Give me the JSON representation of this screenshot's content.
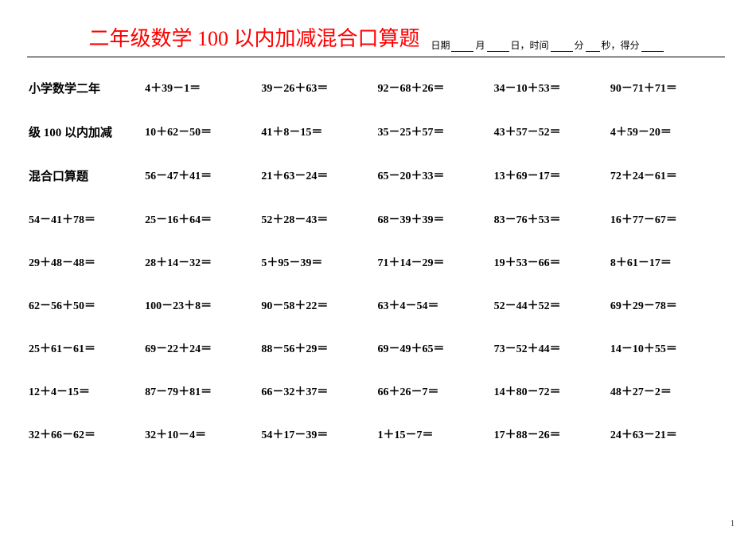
{
  "title": "二年级数学 100 以内加减混合口算题",
  "meta": {
    "l1": "日期",
    "l2": "月",
    "l3": "日，时间",
    "l4": "分",
    "l5": "秒，得分"
  },
  "label_parts": [
    "小学数学二年",
    "级 100 以内加减",
    "混合口算题"
  ],
  "colors": {
    "title": "#ff0000",
    "text": "#000000",
    "bg": "#ffffff"
  },
  "font": {
    "title_size": 26,
    "cell_size": 14,
    "meta_size": 12
  },
  "page_number": "1",
  "rows": [
    [
      "__L0__",
      "4＋39－1＝",
      "39－26＋63＝",
      "92－68＋26＝",
      "34－10＋53＝",
      "90－71＋71＝"
    ],
    [
      "__L1__",
      "10＋62－50＝",
      "41＋8－15＝",
      "35－25＋57＝",
      "43＋57－52＝",
      "4＋59－20＝"
    ],
    [
      "__L2__",
      "56－47＋41＝",
      "21＋63－24＝",
      "65－20＋33＝",
      "13＋69－17＝",
      "72＋24－61＝"
    ],
    [
      "54－41＋78＝",
      "25－16＋64＝",
      "52＋28－43＝",
      "68－39＋39＝",
      "83－76＋53＝",
      "16＋77－67＝"
    ],
    [
      "29＋48－48＝",
      "28＋14－32＝",
      "5＋95－39＝",
      "71＋14－29＝",
      "19＋53－66＝",
      "8＋61－17＝"
    ],
    [
      "62－56＋50＝",
      "100－23＋8＝",
      "90－58＋22＝",
      "63＋4－54＝",
      "52－44＋52＝",
      "69＋29－78＝"
    ],
    [
      "25＋61－61＝",
      "69－22＋24＝",
      "88－56＋29＝",
      "69－49＋65＝",
      "73－52＋44＝",
      "14－10＋55＝"
    ],
    [
      "12＋4－15＝",
      "87－79＋81＝",
      "66－32＋37＝",
      "66＋26－7＝",
      "14＋80－72＝",
      "48＋27－2＝"
    ],
    [
      "32＋66－62＝",
      "32＋10－4＝",
      "54＋17－39＝",
      "1＋15－7＝",
      "17＋88－26＝",
      "24＋63－21＝"
    ]
  ]
}
